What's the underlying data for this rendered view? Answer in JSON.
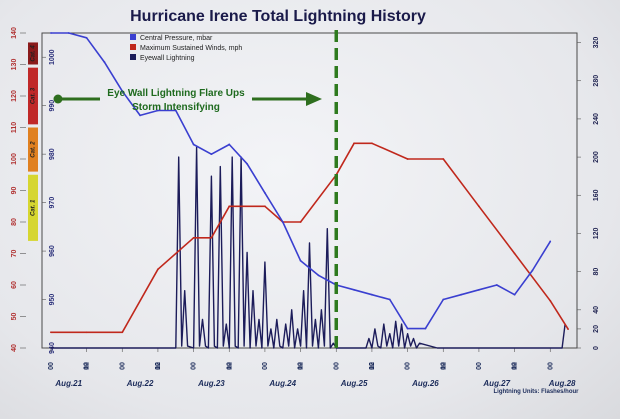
{
  "chart_data": {
    "type": "line",
    "title": "Hurricane Irene Total Lightning History",
    "legend": [
      {
        "name": "Central Pressure, mbar",
        "color": "#3a3fd0"
      },
      {
        "name": "Maximum Sustained Winds, mph",
        "color": "#c0281c"
      },
      {
        "name": "Eyewall Lightning",
        "color": "#1c1c5a"
      }
    ],
    "annotation": {
      "line1": "Eye Wall Lightning Flare Ups",
      "line2": "Storm Intensifying"
    },
    "units_note": "Lightning Units: Flashes/hour",
    "x_range": [
      -3,
      177
    ],
    "x_ticks": [
      0,
      12,
      24,
      36,
      48,
      60,
      72,
      84,
      96,
      108,
      120,
      132,
      144,
      156,
      168
    ],
    "x_tick_label": "00",
    "hour_ticks": [
      12,
      36,
      60,
      84,
      108,
      132,
      156
    ],
    "hour_tick_label": "12",
    "date_labels": [
      {
        "x": 6,
        "label": "Aug.21"
      },
      {
        "x": 30,
        "label": "Aug.22"
      },
      {
        "x": 54,
        "label": "Aug.23"
      },
      {
        "x": 78,
        "label": "Aug.24"
      },
      {
        "x": 102,
        "label": "Aug.25"
      },
      {
        "x": 126,
        "label": "Aug.26"
      },
      {
        "x": 150,
        "label": "Aug.27"
      },
      {
        "x": 172,
        "label": "Aug.28"
      }
    ],
    "winds_axis": {
      "ylim": [
        40,
        140
      ],
      "ticks": [
        40,
        50,
        60,
        70,
        80,
        90,
        100,
        110,
        120,
        130,
        140
      ]
    },
    "pressure_axis": {
      "ylim": [
        940,
        1005
      ],
      "ticks": [
        940,
        950,
        960,
        970,
        980,
        990,
        1000
      ]
    },
    "lightning_axis": {
      "ylim": [
        0,
        330
      ],
      "ticks": [
        0,
        20,
        40,
        80,
        120,
        160,
        200,
        240,
        280,
        320
      ]
    },
    "saffir_simpson": [
      {
        "label": "Cat. 1",
        "from": 74,
        "to": 95,
        "color": "#d6d630"
      },
      {
        "label": "Cat. 2",
        "from": 96,
        "to": 110,
        "color": "#e08020"
      },
      {
        "label": "Cat. 3",
        "from": 111,
        "to": 129,
        "color": "#c02828"
      },
      {
        "label": "Cat. 4",
        "from": 130,
        "to": 137,
        "color": "#8a1a1a"
      }
    ],
    "vline_x": 96,
    "series": [
      {
        "name": "Central Pressure, mbar",
        "axis": "pressure",
        "color": "#3a3fd0",
        "x": [
          0,
          6,
          12,
          18,
          24,
          30,
          36,
          42,
          48,
          54,
          60,
          66,
          72,
          78,
          84,
          90,
          96,
          102,
          108,
          114,
          120,
          126,
          132,
          138,
          144,
          150,
          156,
          162,
          168
        ],
        "y": [
          1005,
          1005,
          1004,
          999,
          993,
          988,
          989,
          989,
          982,
          980,
          982,
          978,
          972,
          966,
          958,
          955,
          953,
          952,
          951,
          950,
          944,
          944,
          950,
          951,
          952,
          953,
          951,
          956,
          962
        ]
      },
      {
        "name": "Maximum Sustained Winds, mph",
        "axis": "winds",
        "color": "#c0281c",
        "x": [
          0,
          12,
          24,
          36,
          48,
          54,
          60,
          72,
          78,
          84,
          96,
          102,
          108,
          120,
          132,
          144,
          156,
          168,
          174
        ],
        "y": [
          45,
          45,
          45,
          65,
          75,
          75,
          85,
          85,
          80,
          80,
          95,
          105,
          105,
          100,
          100,
          85,
          70,
          55,
          46
        ]
      },
      {
        "name": "Eyewall Lightning",
        "axis": "lightning",
        "color": "#1c1c5a",
        "x": [
          0,
          36,
          42,
          43,
          44,
          45,
          46,
          48,
          49,
          50,
          51,
          52,
          53,
          54,
          55,
          56,
          57,
          58,
          59,
          60,
          61,
          62,
          63,
          64,
          65,
          66,
          67,
          68,
          69,
          70,
          71,
          72,
          73,
          74,
          75,
          76,
          77,
          78,
          79,
          80,
          81,
          82,
          83,
          84,
          85,
          86,
          87,
          88,
          89,
          90,
          91,
          92,
          93,
          94,
          95,
          96,
          100,
          106,
          107,
          108,
          109,
          110,
          111,
          112,
          113,
          114,
          115,
          116,
          117,
          118,
          119,
          120,
          121,
          122,
          123,
          124,
          130,
          168,
          172,
          173
        ],
        "y": [
          0,
          0,
          0,
          200,
          2,
          60,
          2,
          0,
          210,
          2,
          30,
          2,
          0,
          180,
          2,
          0,
          190,
          2,
          25,
          0,
          200,
          2,
          0,
          200,
          2,
          100,
          0,
          60,
          2,
          30,
          0,
          90,
          2,
          20,
          0,
          30,
          2,
          0,
          25,
          2,
          40,
          0,
          20,
          2,
          60,
          0,
          110,
          2,
          30,
          0,
          40,
          2,
          125,
          0,
          5,
          0,
          0,
          0,
          10,
          0,
          20,
          2,
          0,
          25,
          2,
          15,
          0,
          28,
          2,
          25,
          0,
          15,
          2,
          10,
          0,
          5,
          0,
          0,
          0,
          25
        ]
      }
    ]
  }
}
